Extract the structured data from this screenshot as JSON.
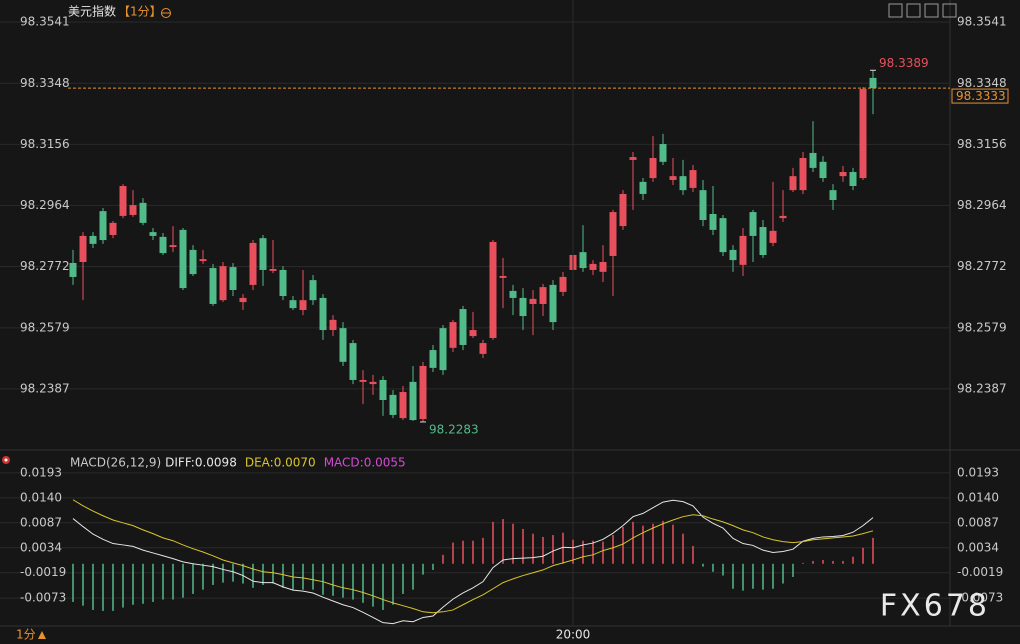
{
  "chart_data": [
    {
      "type": "candlestick",
      "title": "美元指数",
      "period": "【1分】",
      "up_color": "#e9505d",
      "down_color": "#52bb8a",
      "price_line_color": "#e8922e",
      "ylim": [
        98.2201,
        98.361
      ],
      "yticks": [
        98.3541,
        98.3348,
        98.3156,
        98.2964,
        98.2772,
        98.2579,
        98.2387
      ],
      "categories": [
        null,
        null,
        null,
        null,
        null,
        null,
        null,
        null,
        null,
        null,
        null,
        null,
        null,
        null,
        null,
        null,
        null,
        null,
        null,
        null,
        null,
        null,
        null,
        null,
        null,
        null,
        null,
        null,
        null,
        null,
        null,
        null,
        null,
        null,
        null,
        null,
        null,
        null,
        null,
        null,
        null,
        null,
        null,
        null,
        null,
        null,
        null,
        null,
        null,
        null,
        "20:00",
        null,
        null,
        null,
        null,
        null,
        null,
        null,
        null,
        null,
        null,
        null,
        null,
        null,
        null,
        null,
        null,
        null,
        null,
        null,
        null,
        null,
        null,
        null,
        null,
        null,
        null,
        null,
        null,
        null,
        null
      ],
      "ohlc": [
        [
          98.2783,
          98.2824,
          98.2714,
          98.2739
        ],
        [
          98.2786,
          98.288,
          98.2666,
          98.2868
        ],
        [
          98.2868,
          98.288,
          98.283,
          98.2843
        ],
        [
          98.2946,
          98.2956,
          98.2843,
          98.2855
        ],
        [
          98.2871,
          98.2915,
          98.2861,
          98.2909
        ],
        [
          98.2931,
          98.3031,
          98.2924,
          98.3025
        ],
        [
          98.2934,
          98.3012,
          98.2928,
          98.2965
        ],
        [
          98.2972,
          98.2987,
          98.2902,
          98.2909
        ],
        [
          98.288,
          98.2893,
          98.2855,
          98.2868
        ],
        [
          98.2865,
          98.2877,
          98.2808,
          98.2814
        ],
        [
          98.2833,
          98.2899,
          98.2817,
          98.2839
        ],
        [
          98.2887,
          98.2893,
          98.2698,
          98.2704
        ],
        [
          98.2824,
          98.2839,
          98.2742,
          98.2748
        ],
        [
          98.2789,
          98.2824,
          98.278,
          98.2795
        ],
        [
          98.2767,
          98.278,
          98.2648,
          98.2654
        ],
        [
          98.2666,
          98.2786,
          98.266,
          98.2773
        ],
        [
          98.277,
          98.2783,
          98.2679,
          98.2698
        ],
        [
          98.266,
          98.2685,
          98.2635,
          98.2673
        ],
        [
          98.2714,
          98.2855,
          98.2698,
          98.2846
        ],
        [
          98.2861,
          98.2871,
          98.2711,
          98.2761
        ],
        [
          98.2758,
          98.2855,
          98.2751,
          98.2764
        ],
        [
          98.2761,
          98.2773,
          98.2666,
          98.2679
        ],
        [
          98.2666,
          98.2679,
          98.2635,
          98.2641
        ],
        [
          98.2635,
          98.2761,
          98.2619,
          98.2666
        ],
        [
          98.2729,
          98.2745,
          98.2651,
          98.2666
        ],
        [
          98.2673,
          98.2685,
          98.2541,
          98.2572
        ],
        [
          98.2572,
          98.2619,
          98.2553,
          98.2604
        ],
        [
          98.2578,
          98.2597,
          98.2459,
          98.2472
        ],
        [
          98.2531,
          98.2541,
          98.2402,
          98.2415
        ],
        [
          98.2409,
          98.2446,
          98.2339,
          98.2415
        ],
        [
          98.2402,
          98.2431,
          98.2368,
          98.2409
        ],
        [
          98.2415,
          98.2427,
          98.2302,
          98.2352
        ],
        [
          98.2368,
          98.2383,
          98.2295,
          98.2305
        ],
        [
          98.2295,
          98.2396,
          98.2289,
          98.2377
        ],
        [
          98.2409,
          98.2459,
          98.2286,
          98.2289
        ],
        [
          98.2292,
          98.2472,
          98.2283,
          98.2459
        ],
        [
          98.2509,
          98.2525,
          98.244,
          98.2453
        ],
        [
          98.2578,
          98.2588,
          98.2431,
          98.2446
        ],
        [
          98.2516,
          98.2604,
          98.2503,
          98.2597
        ],
        [
          98.2638,
          98.2648,
          98.2509,
          98.2525
        ],
        [
          98.2553,
          98.2629,
          98.2547,
          98.2572
        ],
        [
          98.2497,
          98.2541,
          98.2484,
          98.2531
        ],
        [
          98.2547,
          98.2855,
          98.2541,
          98.2849
        ],
        [
          98.2736,
          98.2799,
          98.2641,
          98.2742
        ],
        [
          98.2695,
          98.2714,
          98.2619,
          98.2673
        ],
        [
          98.2673,
          98.2704,
          98.2572,
          98.2616
        ],
        [
          98.2654,
          98.2698,
          98.2556,
          98.267
        ],
        [
          98.2654,
          98.2717,
          98.2616,
          98.2707
        ],
        [
          98.2714,
          98.2729,
          98.2572,
          98.2597
        ],
        [
          98.2692,
          98.2755,
          98.2679,
          98.2739
        ],
        [
          98.2761,
          98.2861,
          98.2745,
          98.2808
        ],
        [
          98.2817,
          98.2902,
          98.2755,
          98.2767
        ],
        [
          98.2761,
          98.2792,
          98.2745,
          98.278
        ],
        [
          98.2755,
          98.2839,
          98.2723,
          98.2786
        ],
        [
          98.2805,
          98.295,
          98.2679,
          98.2943
        ],
        [
          98.2899,
          98.3012,
          98.2887,
          98.3
        ],
        [
          98.3107,
          98.3132,
          98.295,
          98.3116
        ],
        [
          98.3038,
          98.305,
          98.2981,
          98.3
        ],
        [
          98.305,
          98.3182,
          98.3038,
          98.3113
        ],
        [
          98.3157,
          98.3189,
          98.3091,
          98.3101
        ],
        [
          98.3044,
          98.3113,
          98.3028,
          98.3056
        ],
        [
          98.3056,
          98.3107,
          98.2997,
          98.3012
        ],
        [
          98.3019,
          98.3091,
          98.3006,
          98.3075
        ],
        [
          98.3012,
          98.3044,
          98.2899,
          98.2918
        ],
        [
          98.2937,
          98.3025,
          98.2871,
          98.2887
        ],
        [
          98.2924,
          98.2934,
          98.2805,
          98.2817
        ],
        [
          98.2824,
          98.2839,
          98.2755,
          98.2792
        ],
        [
          98.2777,
          98.2893,
          98.2742,
          98.2868
        ],
        [
          98.2943,
          98.295,
          98.2786,
          98.2868
        ],
        [
          98.2896,
          98.2918,
          98.2799,
          98.2808
        ],
        [
          98.2846,
          98.3038,
          98.2836,
          98.2884
        ],
        [
          98.2924,
          98.3012,
          98.2912,
          98.2931
        ],
        [
          98.3012,
          98.3082,
          98.3006,
          98.3056
        ],
        [
          98.3012,
          98.3132,
          98.3,
          98.3113
        ],
        [
          98.3129,
          98.3229,
          98.3069,
          98.3082
        ],
        [
          98.3101,
          98.3119,
          98.3038,
          98.305
        ],
        [
          98.3012,
          98.3031,
          98.295,
          98.2981
        ],
        [
          98.3056,
          98.3088,
          98.3038,
          98.3069
        ],
        [
          98.3069,
          98.3082,
          98.3012,
          98.3025
        ],
        [
          98.305,
          98.3336,
          98.3044,
          98.333
        ],
        [
          98.3365,
          98.3389,
          98.3251,
          98.3333
        ]
      ]
    },
    {
      "type": "macd",
      "indicator": "MACD(26,12,9)",
      "ylim": [
        -0.013,
        0.0231
      ],
      "yticks": [
        0.0193,
        {
          "value": 0.014,
          "label": "0.0140"
        },
        0.0087,
        0.0034,
        -0.0019,
        -0.0073
      ],
      "series": [
        {
          "name": "DIFF:0.0098",
          "kind": "line",
          "color": "#e6e6e6",
          "values": [
            0.0096,
            0.0079,
            0.0063,
            0.0052,
            0.0043,
            0.004,
            0.0037,
            0.0029,
            0.0023,
            0.0017,
            0.0011,
            0.0004,
            0.0,
            -0.0003,
            -0.0006,
            -0.0012,
            -0.0017,
            -0.0025,
            -0.0037,
            -0.004,
            -0.004,
            -0.0049,
            -0.0056,
            -0.0058,
            -0.0062,
            -0.0071,
            -0.0079,
            -0.0087,
            -0.0093,
            -0.0103,
            -0.0114,
            -0.0125,
            -0.0127,
            -0.0121,
            -0.0123,
            -0.0114,
            -0.0111,
            -0.0092,
            -0.0075,
            -0.0062,
            -0.0051,
            -0.0038,
            -0.0008,
            0.0008,
            0.0011,
            0.0012,
            0.0013,
            0.0016,
            0.0027,
            0.0035,
            0.0034,
            0.004,
            0.0044,
            0.0052,
            0.0065,
            0.0081,
            0.01,
            0.0107,
            0.0119,
            0.0131,
            0.0135,
            0.0132,
            0.0123,
            0.0099,
            0.0086,
            0.0076,
            0.0054,
            0.0043,
            0.0039,
            0.0029,
            0.0024,
            0.0026,
            0.0031,
            0.0048,
            0.0054,
            0.0057,
            0.0058,
            0.006,
            0.0067,
            0.0081,
            0.0098
          ]
        },
        {
          "name": "DEA:0.0070",
          "kind": "line",
          "color": "#d9c52b",
          "values": [
            0.0136,
            0.0123,
            0.0112,
            0.0102,
            0.0093,
            0.0087,
            0.0081,
            0.0072,
            0.0064,
            0.0055,
            0.0049,
            0.004,
            0.0032,
            0.0025,
            0.0017,
            0.0008,
            0.0002,
            -0.0004,
            -0.0011,
            -0.0017,
            -0.0019,
            -0.0023,
            -0.0028,
            -0.003,
            -0.0034,
            -0.0038,
            -0.0045,
            -0.0051,
            -0.0055,
            -0.0061,
            -0.0068,
            -0.0076,
            -0.0083,
            -0.0089,
            -0.0095,
            -0.0102,
            -0.0104,
            -0.0102,
            -0.0098,
            -0.0087,
            -0.0076,
            -0.0066,
            -0.0053,
            -0.004,
            -0.0032,
            -0.0025,
            -0.0019,
            -0.0013,
            -0.0004,
            0.0002,
            0.0008,
            0.0015,
            0.0019,
            0.0028,
            0.0034,
            0.0042,
            0.0055,
            0.0066,
            0.0076,
            0.0085,
            0.0093,
            0.01,
            0.0104,
            0.0102,
            0.0095,
            0.0089,
            0.0081,
            0.0072,
            0.0066,
            0.0057,
            0.0051,
            0.0047,
            0.0045,
            0.0047,
            0.0051,
            0.0053,
            0.0055,
            0.0057,
            0.0059,
            0.0064,
            0.007
          ]
        },
        {
          "name": "MACD:0.0055",
          "kind": "bar",
          "color": "#d44ad4",
          "up_color": "#e9505d",
          "down_color": "#52bb8a",
          "values": [
            -0.0081,
            -0.0089,
            -0.0098,
            -0.01,
            -0.01,
            -0.0093,
            -0.0087,
            -0.0085,
            -0.0081,
            -0.0076,
            -0.0076,
            -0.0072,
            -0.0064,
            -0.0055,
            -0.0045,
            -0.004,
            -0.0038,
            -0.0042,
            -0.0051,
            -0.0045,
            -0.0042,
            -0.0051,
            -0.0055,
            -0.0055,
            -0.0055,
            -0.0066,
            -0.0068,
            -0.0072,
            -0.0076,
            -0.0083,
            -0.0091,
            -0.0098,
            -0.0087,
            -0.0064,
            -0.0055,
            -0.0023,
            -0.0013,
            0.0019,
            0.0045,
            0.0049,
            0.0049,
            0.0055,
            0.0089,
            0.0095,
            0.0085,
            0.0074,
            0.0064,
            0.0057,
            0.0061,
            0.0066,
            0.0051,
            0.0049,
            0.0049,
            0.0047,
            0.0061,
            0.0078,
            0.0089,
            0.0081,
            0.0085,
            0.0091,
            0.0083,
            0.0064,
            0.0038,
            -0.0006,
            -0.0017,
            -0.0025,
            -0.0053,
            -0.0057,
            -0.0053,
            -0.0055,
            -0.0053,
            -0.0042,
            -0.0028,
            0.0002,
            0.0006,
            0.0008,
            0.0006,
            0.0006,
            0.0015,
            0.0034,
            0.0055
          ]
        }
      ]
    }
  ],
  "footer": {
    "period": "1分"
  },
  "watermark": "FX678"
}
